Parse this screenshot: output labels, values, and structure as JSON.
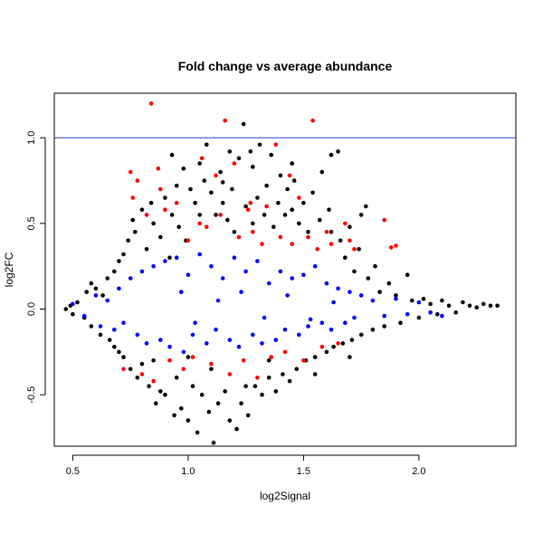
{
  "chart_data": {
    "type": "scatter",
    "title": "Fold change vs average abundance",
    "xlabel": "log2Signal",
    "ylabel": "log2FC",
    "xlim": [
      0.42,
      2.42
    ],
    "ylim": [
      -0.8,
      1.26
    ],
    "xticks": [
      0.5,
      1.0,
      1.5,
      2.0
    ],
    "xtick_labels": [
      "0.5",
      "1.0",
      "1.5",
      "2.0"
    ],
    "yticks": [
      -0.5,
      0.0,
      0.5,
      1.0
    ],
    "ytick_labels": [
      "-0.5",
      "0.0",
      "0.5",
      "1.0"
    ],
    "grid": false,
    "reference_line": {
      "orientation": "horizontal",
      "y": 1.0,
      "color": "#3333cc"
    },
    "colors": {
      "black": "#000000",
      "blue": "#0000ff",
      "red": "#ff0000"
    },
    "series": [
      {
        "color": "#000000",
        "points": [
          [
            0.47,
            0.0
          ],
          [
            0.49,
            0.02
          ],
          [
            0.5,
            -0.03
          ],
          [
            0.52,
            0.04
          ],
          [
            0.55,
            -0.05
          ],
          [
            0.56,
            0.1
          ],
          [
            0.58,
            0.15
          ],
          [
            0.58,
            -0.1
          ],
          [
            0.6,
            0.12
          ],
          [
            0.62,
            -0.15
          ],
          [
            0.63,
            0.08
          ],
          [
            0.65,
            0.18
          ],
          [
            0.66,
            -0.18
          ],
          [
            0.68,
            0.22
          ],
          [
            0.68,
            -0.22
          ],
          [
            0.7,
            0.28
          ],
          [
            0.7,
            -0.25
          ],
          [
            0.72,
            0.32
          ],
          [
            0.72,
            -0.28
          ],
          [
            0.74,
            0.4
          ],
          [
            0.75,
            -0.35
          ],
          [
            0.76,
            0.52
          ],
          [
            0.77,
            0.45
          ],
          [
            0.78,
            -0.4
          ],
          [
            0.8,
            0.58
          ],
          [
            0.8,
            -0.32
          ],
          [
            0.82,
            0.35
          ],
          [
            0.83,
            -0.45
          ],
          [
            0.84,
            0.62
          ],
          [
            0.85,
            0.5
          ],
          [
            0.86,
            -0.55
          ],
          [
            0.88,
            0.42
          ],
          [
            0.88,
            -0.48
          ],
          [
            0.9,
            0.65
          ],
          [
            0.9,
            -0.5
          ],
          [
            0.92,
            0.3
          ],
          [
            0.93,
            0.55
          ],
          [
            0.94,
            -0.62
          ],
          [
            0.95,
            0.72
          ],
          [
            0.96,
            0.48
          ],
          [
            0.97,
            -0.58
          ],
          [
            0.98,
            0.82
          ],
          [
            0.99,
            0.4
          ],
          [
            1.0,
            -0.65
          ],
          [
            1.01,
            0.7
          ],
          [
            1.02,
            -0.45
          ],
          [
            1.03,
            0.62
          ],
          [
            1.04,
            -0.72
          ],
          [
            1.05,
            0.55
          ],
          [
            1.06,
            -0.5
          ],
          [
            1.07,
            0.75
          ],
          [
            1.08,
            0.96
          ],
          [
            1.09,
            -0.6
          ],
          [
            1.1,
            0.68
          ],
          [
            1.11,
            -0.78
          ],
          [
            1.12,
            0.55
          ],
          [
            1.13,
            -0.55
          ],
          [
            1.14,
            0.8
          ],
          [
            1.15,
            0.62
          ],
          [
            1.16,
            -0.48
          ],
          [
            1.17,
            0.52
          ],
          [
            1.18,
            -0.65
          ],
          [
            1.19,
            0.7
          ],
          [
            1.2,
            0.45
          ],
          [
            1.21,
            -0.7
          ],
          [
            1.22,
            0.88
          ],
          [
            1.23,
            -0.55
          ],
          [
            1.24,
            1.08
          ],
          [
            1.25,
            0.6
          ],
          [
            1.26,
            -0.62
          ],
          [
            1.27,
            0.92
          ],
          [
            1.28,
            0.5
          ],
          [
            1.29,
            -0.45
          ],
          [
            1.3,
            0.65
          ],
          [
            1.31,
            0.96
          ],
          [
            1.32,
            -0.5
          ],
          [
            1.33,
            0.55
          ],
          [
            1.34,
            0.72
          ],
          [
            1.35,
            -0.4
          ],
          [
            1.36,
            0.9
          ],
          [
            1.37,
            0.48
          ],
          [
            1.38,
            -0.48
          ],
          [
            1.39,
            0.62
          ],
          [
            1.4,
            0.78
          ],
          [
            1.41,
            -0.38
          ],
          [
            1.42,
            0.55
          ],
          [
            1.43,
            0.7
          ],
          [
            1.44,
            -0.42
          ],
          [
            1.45,
            0.58
          ],
          [
            1.46,
            0.75
          ],
          [
            1.47,
            -0.35
          ],
          [
            1.48,
            0.5
          ],
          [
            1.5,
            0.62
          ],
          [
            1.51,
            -0.3
          ],
          [
            1.52,
            0.45
          ],
          [
            1.54,
            0.68
          ],
          [
            1.55,
            -0.28
          ],
          [
            1.57,
            0.52
          ],
          [
            1.58,
            0.8
          ],
          [
            1.6,
            -0.25
          ],
          [
            1.61,
            0.58
          ],
          [
            1.62,
            0.45
          ],
          [
            1.63,
            -0.22
          ],
          [
            1.65,
            0.92
          ],
          [
            1.66,
            0.4
          ],
          [
            1.67,
            -0.2
          ],
          [
            1.68,
            0.3
          ],
          [
            1.7,
            0.48
          ],
          [
            1.71,
            -0.18
          ],
          [
            1.72,
            0.22
          ],
          [
            1.74,
            0.35
          ],
          [
            1.75,
            -0.15
          ],
          [
            1.77,
            0.6
          ],
          [
            1.78,
            0.18
          ],
          [
            1.8,
            -0.12
          ],
          [
            1.81,
            0.25
          ],
          [
            1.83,
            0.1
          ],
          [
            1.85,
            -0.1
          ],
          [
            1.87,
            0.15
          ],
          [
            1.9,
            0.08
          ],
          [
            1.92,
            -0.08
          ],
          [
            1.95,
            0.2
          ],
          [
            1.97,
            0.05
          ],
          [
            2.0,
            -0.05
          ],
          [
            2.02,
            0.06
          ],
          [
            2.05,
            0.03
          ],
          [
            2.08,
            -0.03
          ],
          [
            2.1,
            0.05
          ],
          [
            2.13,
            0.02
          ],
          [
            2.16,
            -0.02
          ],
          [
            2.19,
            0.04
          ],
          [
            2.22,
            0.02
          ],
          [
            2.25,
            0.01
          ],
          [
            2.28,
            0.03
          ],
          [
            2.31,
            0.02
          ],
          [
            2.34,
            0.02
          ],
          [
            1.15,
            0.74
          ],
          [
            1.05,
            0.85
          ],
          [
            0.93,
            0.9
          ],
          [
            1.18,
            0.92
          ],
          [
            1.45,
            0.85
          ],
          [
            1.28,
            0.83
          ],
          [
            1.62,
            0.9
          ],
          [
            1.75,
            0.55
          ],
          [
            0.85,
            -0.3
          ],
          [
            0.95,
            -0.4
          ],
          [
            1.25,
            -0.45
          ],
          [
            1.35,
            -0.3
          ],
          [
            1.55,
            -0.38
          ],
          [
            1.7,
            -0.28
          ],
          [
            1.1,
            -0.35
          ],
          [
            1.0,
            -0.28
          ]
        ]
      },
      {
        "color": "#0000ff",
        "points": [
          [
            0.5,
            0.03
          ],
          [
            0.55,
            -0.04
          ],
          [
            0.6,
            0.08
          ],
          [
            0.62,
            -0.1
          ],
          [
            0.65,
            0.05
          ],
          [
            0.68,
            -0.12
          ],
          [
            0.7,
            0.12
          ],
          [
            0.72,
            -0.08
          ],
          [
            0.75,
            0.18
          ],
          [
            0.78,
            -0.15
          ],
          [
            0.8,
            0.22
          ],
          [
            0.82,
            -0.2
          ],
          [
            0.85,
            0.25
          ],
          [
            0.88,
            -0.18
          ],
          [
            0.9,
            0.28
          ],
          [
            0.92,
            -0.22
          ],
          [
            0.95,
            0.3
          ],
          [
            0.98,
            -0.25
          ],
          [
            1.0,
            0.2
          ],
          [
            1.02,
            -0.15
          ],
          [
            1.05,
            0.32
          ],
          [
            1.08,
            -0.2
          ],
          [
            1.1,
            0.25
          ],
          [
            1.12,
            -0.12
          ],
          [
            1.15,
            0.18
          ],
          [
            1.18,
            -0.18
          ],
          [
            1.2,
            0.3
          ],
          [
            1.22,
            -0.22
          ],
          [
            1.25,
            0.22
          ],
          [
            1.28,
            -0.15
          ],
          [
            1.3,
            0.28
          ],
          [
            1.32,
            -0.2
          ],
          [
            1.35,
            0.15
          ],
          [
            1.38,
            -0.18
          ],
          [
            1.4,
            0.22
          ],
          [
            1.42,
            -0.12
          ],
          [
            1.45,
            0.18
          ],
          [
            1.48,
            -0.15
          ],
          [
            1.5,
            0.2
          ],
          [
            1.52,
            -0.1
          ],
          [
            1.55,
            0.25
          ],
          [
            1.58,
            -0.08
          ],
          [
            1.6,
            0.15
          ],
          [
            1.62,
            -0.12
          ],
          [
            1.65,
            0.12
          ],
          [
            1.68,
            -0.08
          ],
          [
            1.7,
            0.1
          ],
          [
            1.72,
            -0.05
          ],
          [
            1.75,
            0.08
          ],
          [
            1.8,
            0.05
          ],
          [
            1.85,
            -0.04
          ],
          [
            1.9,
            0.06
          ],
          [
            1.95,
            -0.03
          ],
          [
            2.0,
            0.04
          ],
          [
            2.05,
            -0.02
          ],
          [
            2.1,
            -0.04
          ],
          [
            0.97,
            0.1
          ],
          [
            1.03,
            -0.08
          ],
          [
            1.13,
            0.05
          ],
          [
            1.23,
            0.1
          ],
          [
            1.33,
            -0.05
          ],
          [
            1.43,
            0.08
          ],
          [
            1.53,
            -0.06
          ],
          [
            1.63,
            0.04
          ]
        ]
      },
      {
        "color": "#ff0000",
        "points": [
          [
            0.75,
            0.8
          ],
          [
            0.76,
            0.65
          ],
          [
            0.78,
            0.75
          ],
          [
            0.8,
            -0.38
          ],
          [
            0.82,
            0.55
          ],
          [
            0.84,
            1.2
          ],
          [
            0.85,
            -0.42
          ],
          [
            0.88,
            0.7
          ],
          [
            0.9,
            0.58
          ],
          [
            0.92,
            -0.3
          ],
          [
            0.95,
            0.62
          ],
          [
            0.98,
            -0.35
          ],
          [
            1.0,
            0.4
          ],
          [
            1.02,
            -0.28
          ],
          [
            1.05,
            0.5
          ],
          [
            1.08,
            0.48
          ],
          [
            1.1,
            -0.32
          ],
          [
            1.12,
            0.78
          ],
          [
            1.14,
            0.55
          ],
          [
            1.16,
            1.1
          ],
          [
            1.18,
            -0.38
          ],
          [
            1.2,
            0.85
          ],
          [
            1.22,
            0.42
          ],
          [
            1.24,
            -0.3
          ],
          [
            1.26,
            0.58
          ],
          [
            1.28,
            0.45
          ],
          [
            1.3,
            -0.4
          ],
          [
            1.32,
            0.38
          ],
          [
            1.34,
            0.6
          ],
          [
            1.36,
            -0.28
          ],
          [
            1.38,
            0.96
          ],
          [
            1.4,
            0.42
          ],
          [
            1.42,
            -0.25
          ],
          [
            1.45,
            0.38
          ],
          [
            1.48,
            0.65
          ],
          [
            1.5,
            -0.3
          ],
          [
            1.52,
            0.42
          ],
          [
            1.54,
            1.1
          ],
          [
            1.56,
            0.35
          ],
          [
            1.58,
            -0.22
          ],
          [
            1.6,
            0.45
          ],
          [
            1.62,
            0.38
          ],
          [
            1.65,
            -0.2
          ],
          [
            1.68,
            0.5
          ],
          [
            1.7,
            0.4
          ],
          [
            1.72,
            0.35
          ],
          [
            1.85,
            0.52
          ],
          [
            1.88,
            0.36
          ],
          [
            1.9,
            0.37
          ],
          [
            0.72,
            -0.35
          ],
          [
            0.87,
            0.82
          ],
          [
            1.06,
            0.88
          ],
          [
            1.27,
            0.62
          ],
          [
            1.44,
            0.78
          ]
        ]
      }
    ]
  }
}
